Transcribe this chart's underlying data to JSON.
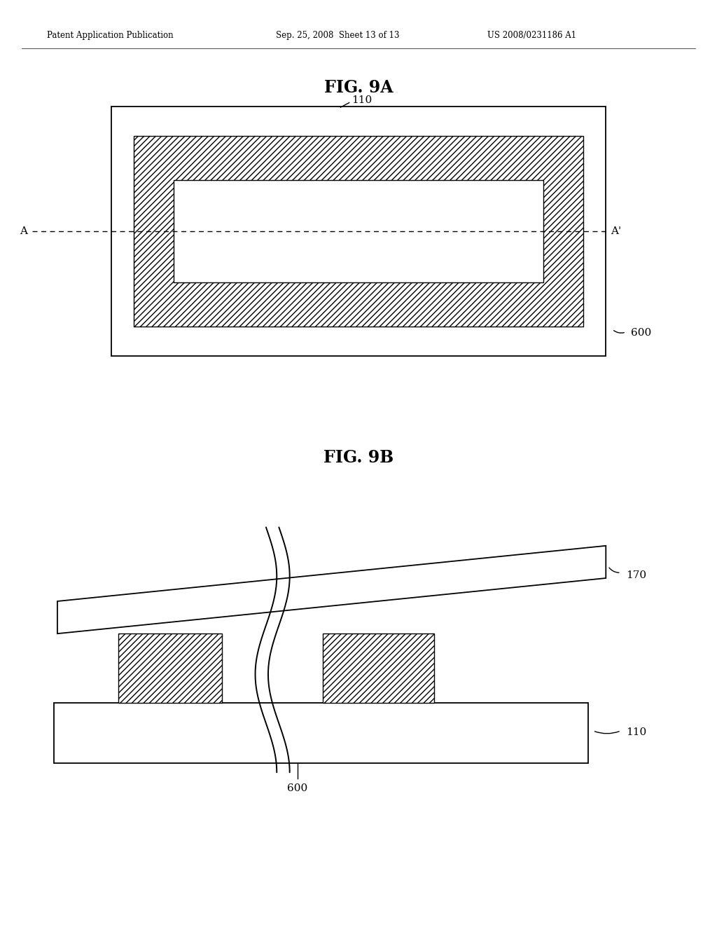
{
  "bg_color": "#ffffff",
  "header_text": "Patent Application Publication",
  "header_date": "Sep. 25, 2008  Sheet 13 of 13",
  "header_patent": "US 2008/0231186 A1",
  "fig9a_title": "FIG. 9A",
  "fig9b_title": "FIG. 9B",
  "label_110": "110",
  "label_600_9a": "600",
  "label_170": "170",
  "label_110b": "110",
  "label_600_9b": "600",
  "label_A": "A",
  "label_Aprime": "A'"
}
